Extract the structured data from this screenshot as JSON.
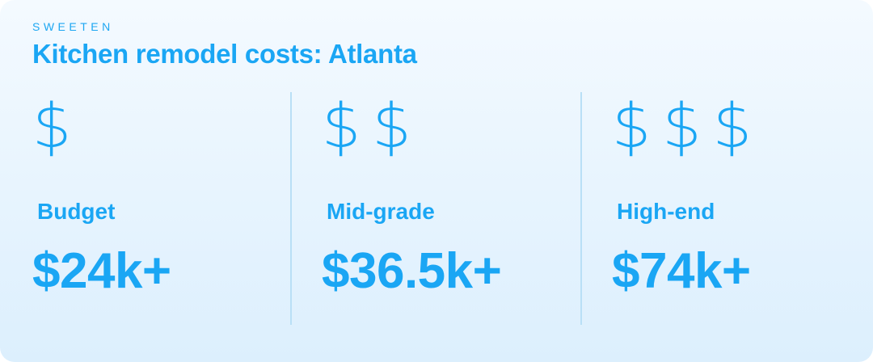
{
  "header": {
    "brand": "SWEETEN",
    "title": "Kitchen remodel costs: Atlanta"
  },
  "tiers": [
    {
      "icon_name": "dollar-icon",
      "icon_glyph": "$",
      "icon_count": 1,
      "label": "Budget",
      "price": "$24k+"
    },
    {
      "icon_name": "dollar-icon",
      "icon_glyph": "$",
      "icon_count": 2,
      "label": "Mid-grade",
      "price": "$36.5k+"
    },
    {
      "icon_name": "dollar-icon",
      "icon_glyph": "$",
      "icon_count": 3,
      "label": "High-end",
      "price": "$74k+"
    }
  ],
  "colors": {
    "accent": "#1aa6f4",
    "background_top": "#f4faff",
    "background_bottom": "#dceffd",
    "divider": "#b9dff6"
  }
}
